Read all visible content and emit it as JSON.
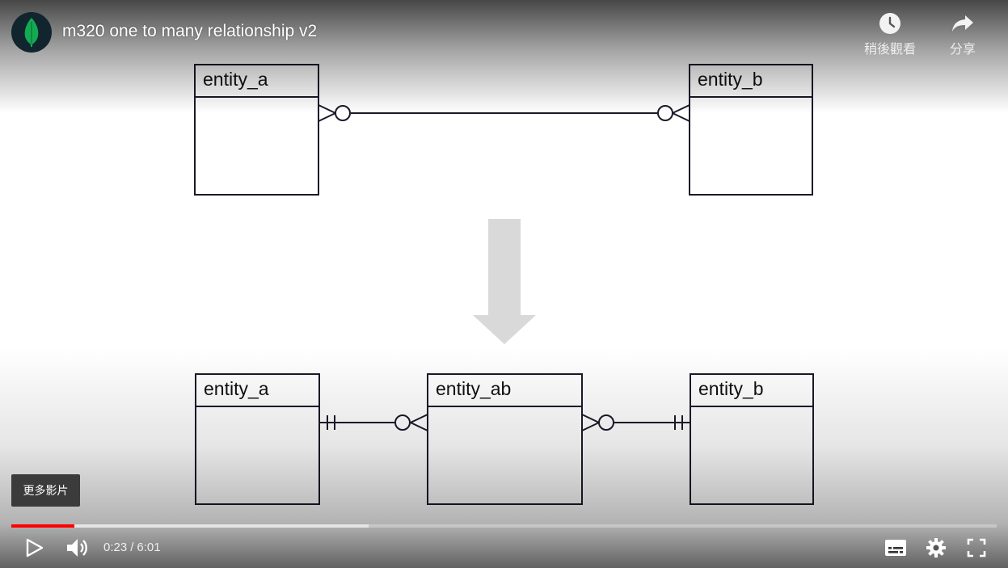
{
  "video": {
    "title": "m320 one to many relationship v2",
    "channel_logo": "mongodb-leaf-icon"
  },
  "top_actions": {
    "watch_later": "稍後觀看",
    "share": "分享"
  },
  "diagram": {
    "before": {
      "left_entity": "entity_a",
      "right_entity": "entity_b",
      "relationship": "many-to-many",
      "left_end": "zero-or-many",
      "right_end": "zero-or-many"
    },
    "arrow": "down-arrow-icon",
    "after": {
      "left_entity": "entity_a",
      "middle_entity": "entity_ab",
      "right_entity": "entity_b",
      "left_link": {
        "from": "exactly-one",
        "to": "zero-or-many"
      },
      "right_link": {
        "from": "zero-or-many",
        "to": "exactly-one"
      }
    }
  },
  "more_videos": "更多影片",
  "player": {
    "current_time": "0:23",
    "separator": "/",
    "duration": "6:01",
    "played_percent": 6.4,
    "buffered_percent": 36.3,
    "progress_color": "#ff0000"
  }
}
